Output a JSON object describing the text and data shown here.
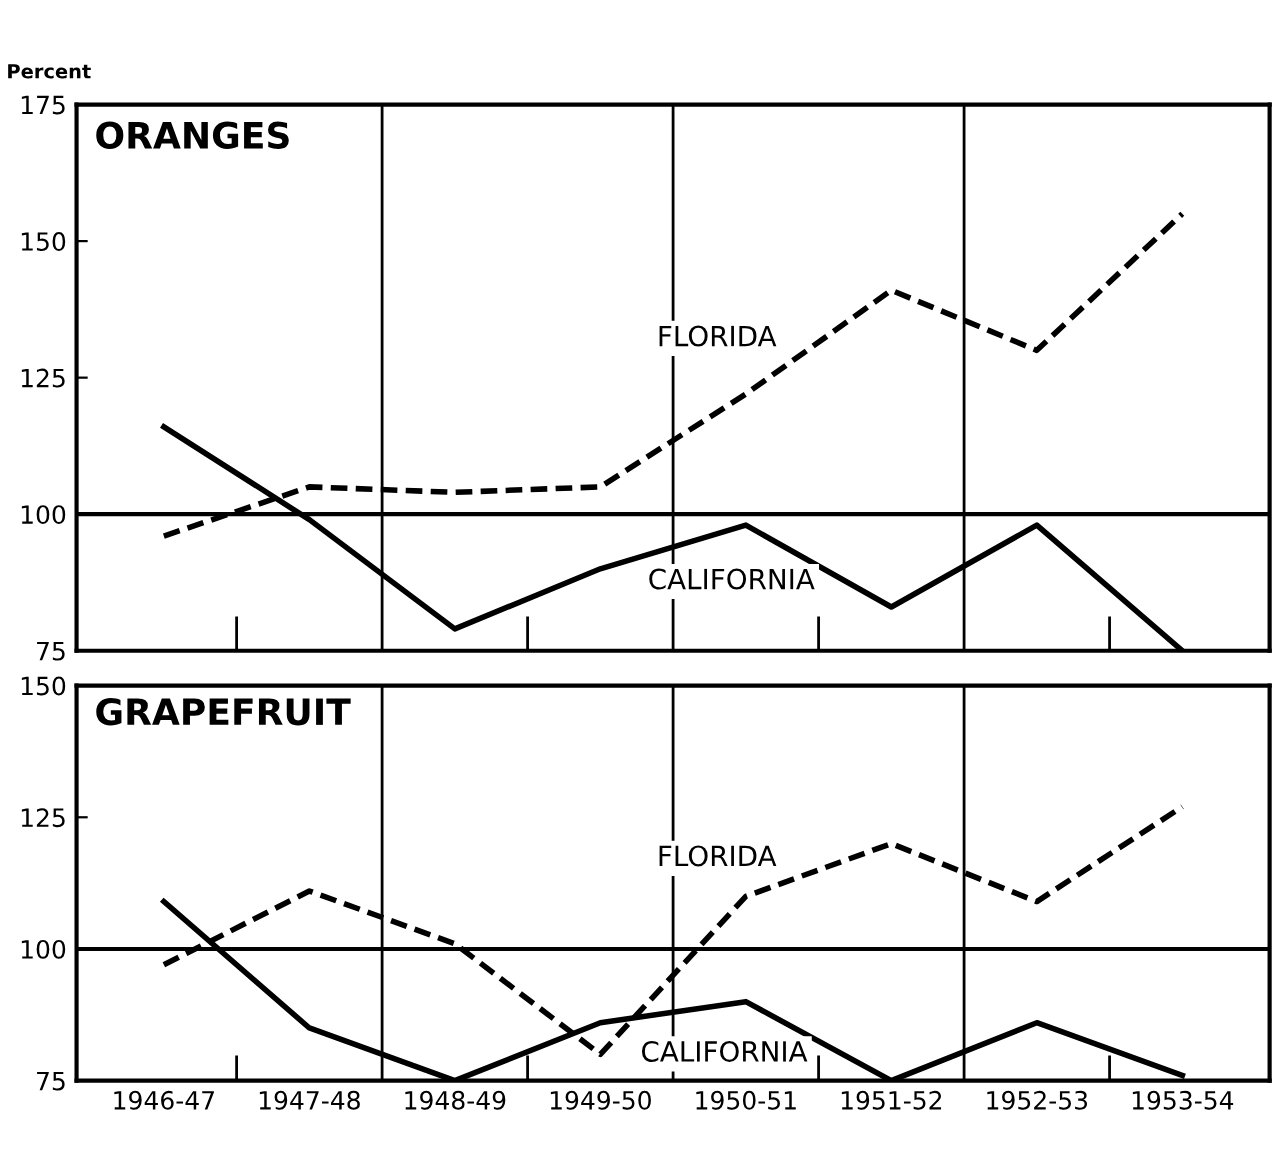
{
  "chart_data": [
    {
      "type": "line",
      "title": "ORANGES",
      "ylabel": "Percent",
      "categories": [
        "1946-47",
        "1947-48",
        "1948-49",
        "1949-50",
        "1950-51",
        "1951-52",
        "1952-53",
        "1953-54"
      ],
      "series": [
        {
          "name": "FLORIDA",
          "color": "#000000",
          "line_style": "dashed",
          "values": [
            96,
            105,
            104,
            105,
            122,
            141,
            130,
            155
          ]
        },
        {
          "name": "CALIFORNIA",
          "color": "#000000",
          "line_style": "solid",
          "values": [
            116,
            99,
            79,
            90,
            98,
            83,
            98,
            75
          ]
        }
      ],
      "ylim": [
        75,
        175
      ],
      "yticks": [
        75,
        100,
        125,
        150,
        175
      ],
      "ref_lines": [
        {
          "axis": "y",
          "value": 100
        }
      ],
      "grid": "x",
      "tick_labels": "y",
      "legend": false
    },
    {
      "type": "line",
      "title": "GRAPEFRUIT",
      "categories": [
        "1946-47",
        "1947-48",
        "1948-49",
        "1949-50",
        "1950-51",
        "1951-52",
        "1952-53",
        "1953-54"
      ],
      "series": [
        {
          "name": "FLORIDA",
          "color": "#000000",
          "line_style": "dashed",
          "values": [
            97,
            111,
            101,
            80,
            110,
            120,
            109,
            127
          ]
        },
        {
          "name": "CALIFORNIA",
          "color": "#000000",
          "line_style": "solid",
          "values": [
            109,
            85,
            75,
            86,
            90,
            75,
            86,
            76
          ]
        }
      ],
      "ylim": [
        75,
        150
      ],
      "yticks": [
        75,
        100,
        125,
        150
      ],
      "ref_lines": [
        {
          "axis": "y",
          "value": 100
        }
      ],
      "grid": "x",
      "legend": false
    }
  ]
}
